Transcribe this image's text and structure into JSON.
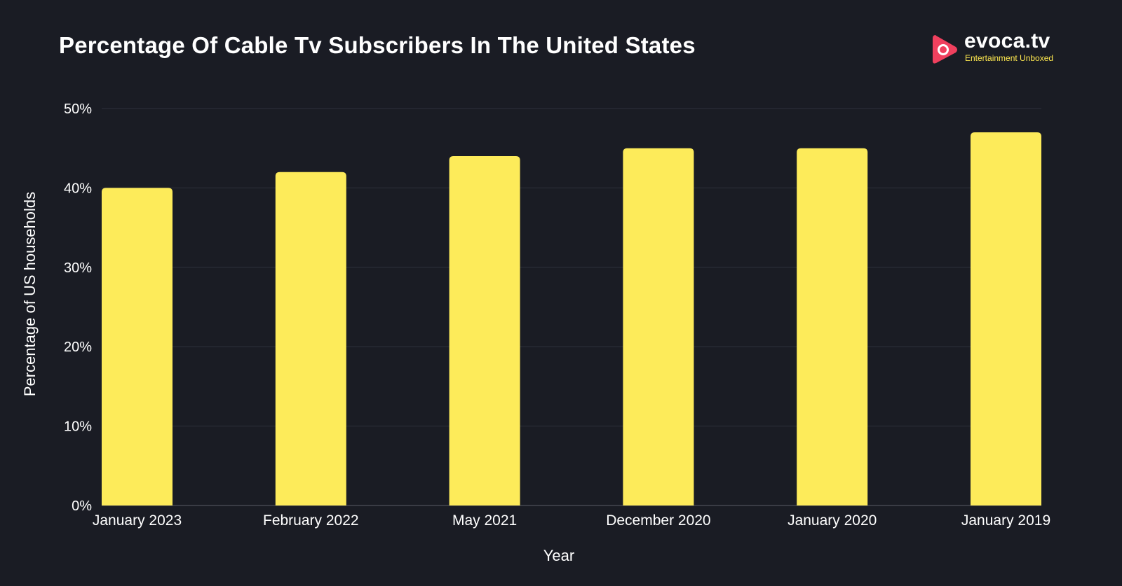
{
  "title": "Percentage Of Cable Tv Subscribers In The United States",
  "brand": {
    "name": "evoca.tv",
    "tagline": "Entertainment Unboxed",
    "icon": "play-icon",
    "colors": {
      "mark": "#f0405e",
      "tagline": "#ffe94f"
    }
  },
  "colors": {
    "background": "#1a1c24",
    "bar": "#fdeb5a",
    "grid": "#2e313b",
    "axis": "#5a5d66"
  },
  "chart_data": {
    "type": "bar",
    "categories": [
      "January 2023",
      "February 2022",
      "May 2021",
      "December 2020",
      "January 2020",
      "January 2019"
    ],
    "values": [
      40,
      42,
      44,
      45,
      45,
      47
    ],
    "xlabel": "Year",
    "ylabel": "Percentage of US households",
    "ylim": [
      0,
      50
    ],
    "yticks": [
      "0%",
      "10%",
      "20%",
      "30%",
      "40%",
      "50%"
    ],
    "grid": true,
    "legend": "none"
  }
}
